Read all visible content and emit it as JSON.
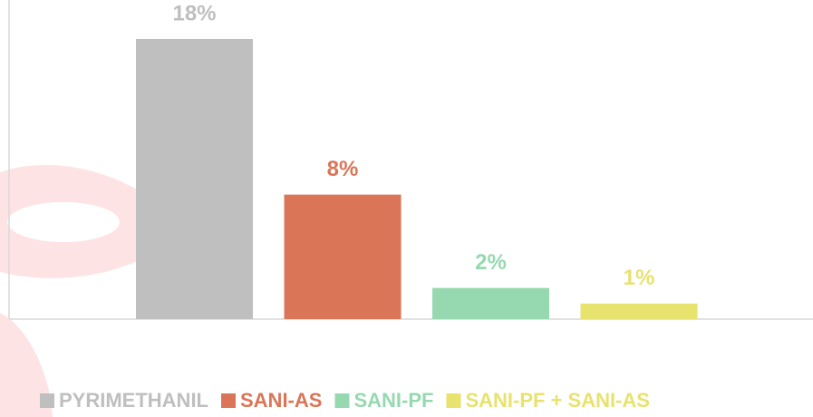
{
  "chart_data": {
    "type": "bar",
    "categories": [
      null
    ],
    "series": [
      {
        "name": "PYRIMETHANIL",
        "color": "#bfbfbf",
        "values": [
          18
        ],
        "value_labels": [
          "18%"
        ]
      },
      {
        "name": "SANI-AS",
        "color": "#db7558",
        "values": [
          8
        ],
        "value_labels": [
          "8%"
        ]
      },
      {
        "name": "SANI-PF",
        "color": "#96d9b0",
        "values": [
          2
        ],
        "value_labels": [
          "2%"
        ]
      },
      {
        "name": "SANI-PF + SANI-AS",
        "color": "#e8e26e",
        "values": [
          1
        ],
        "value_labels": [
          "1%"
        ]
      }
    ],
    "ylim": [
      0,
      18
    ],
    "legend": "bottom"
  }
}
